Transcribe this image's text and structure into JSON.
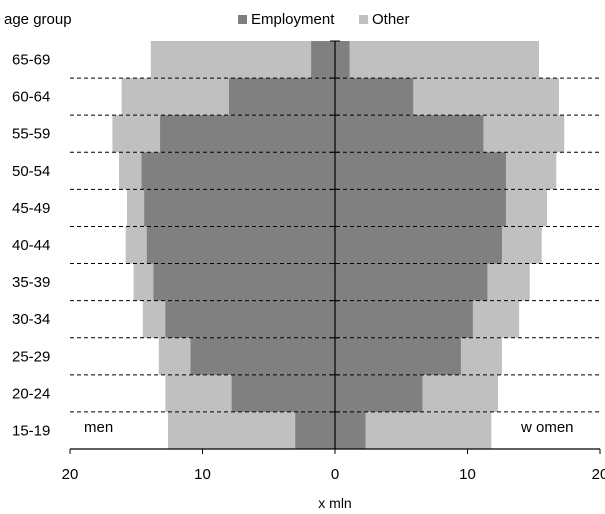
{
  "chart_data": {
    "type": "bar",
    "orientation": "population-pyramid",
    "y_axis_label": "age group",
    "x_axis_label": "x mln",
    "side_labels": {
      "left": "men",
      "right": "w omen"
    },
    "categories": [
      "15-19",
      "20-24",
      "25-29",
      "30-34",
      "35-39",
      "40-44",
      "45-49",
      "50-54",
      "55-59",
      "60-64",
      "65-69"
    ],
    "series": [
      {
        "name": "Employment",
        "color": "#808080",
        "men": [
          3.0,
          7.8,
          10.9,
          12.8,
          13.7,
          14.2,
          14.4,
          14.6,
          13.2,
          8.0,
          1.8
        ],
        "women": [
          2.3,
          6.6,
          9.5,
          10.4,
          11.5,
          12.6,
          12.9,
          12.9,
          11.2,
          5.9,
          1.1
        ]
      },
      {
        "name": "Other",
        "color": "#c0c0c0",
        "men": [
          12.6,
          12.8,
          13.3,
          14.5,
          15.2,
          15.8,
          15.7,
          16.3,
          16.8,
          16.1,
          13.9
        ],
        "women": [
          11.8,
          12.3,
          12.6,
          13.9,
          14.7,
          15.6,
          16.0,
          16.7,
          17.3,
          16.9,
          15.4
        ]
      }
    ],
    "x_ticks": [
      "20",
      "10",
      "0",
      "10",
      "20"
    ],
    "xlim": [
      -20,
      20
    ],
    "grid": "dashed horizontal",
    "legend_position": "top"
  }
}
